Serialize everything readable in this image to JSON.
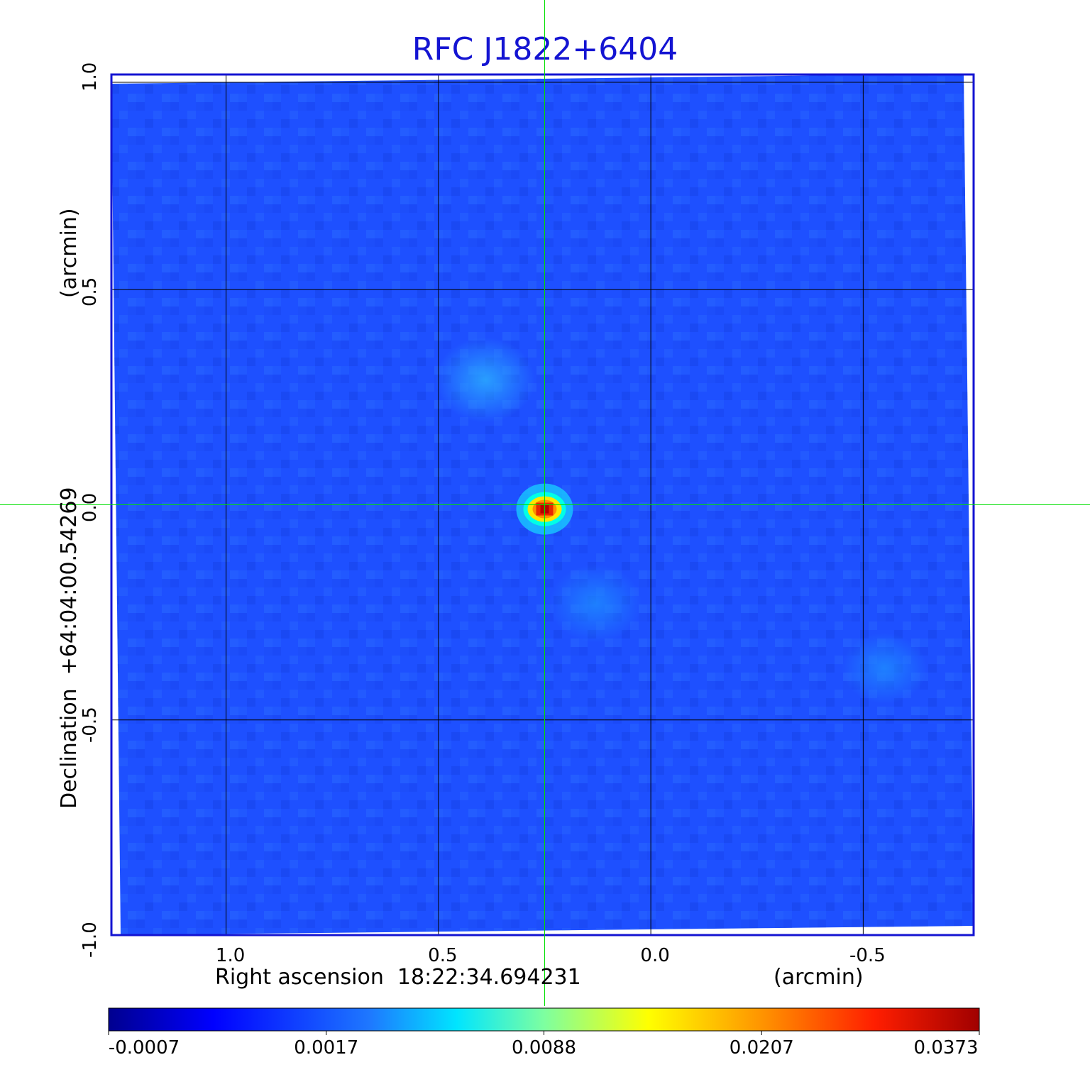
{
  "chart_data": {
    "type": "heatmap",
    "title": "RFC J1822+6404",
    "xlabel": "Right ascension  18:22:34.694231",
    "xlabel_unit": "(arcmin)",
    "ylabel": "Declination  +64:04:00.54269",
    "ylabel_unit": "(arcmin)",
    "x_ticks": [
      "1.0",
      "0.5",
      "0.0",
      "-0.5"
    ],
    "x_tick_values": [
      1.0,
      0.5,
      0.0,
      -0.5
    ],
    "xlim": [
      1.27,
      -0.76
    ],
    "y_ticks": [
      "1.0",
      "0.5",
      "0.0",
      "-0.5",
      "-1.0"
    ],
    "y_tick_values": [
      1.0,
      0.5,
      0.0,
      -0.5,
      -1.0
    ],
    "ylim": [
      -1.0,
      1.0
    ],
    "grid": true,
    "crosshair": [
      0.25,
      0.0
    ],
    "colorbar_ticks": [
      "-0.0007",
      "0.0017",
      "0.0088",
      "0.0207",
      "0.0373"
    ],
    "colorbar_values": [
      -0.0007,
      0.0017,
      0.0088,
      0.0207,
      0.0373
    ],
    "colormap": "jet",
    "peak": {
      "x": 0.25,
      "y": -0.01,
      "value": 0.0373
    },
    "features": [
      {
        "x": 0.39,
        "y": 0.29,
        "value": 0.0017
      },
      {
        "x": 0.13,
        "y": -0.23,
        "value": 0.0012
      },
      {
        "x": -0.55,
        "y": -0.38,
        "value": 0.0008
      }
    ],
    "colors": {
      "title": "#1414d2",
      "frame": "#1414d2",
      "grid": "#000000",
      "crosshair": "#00e000",
      "background": "#1e50ff"
    }
  }
}
